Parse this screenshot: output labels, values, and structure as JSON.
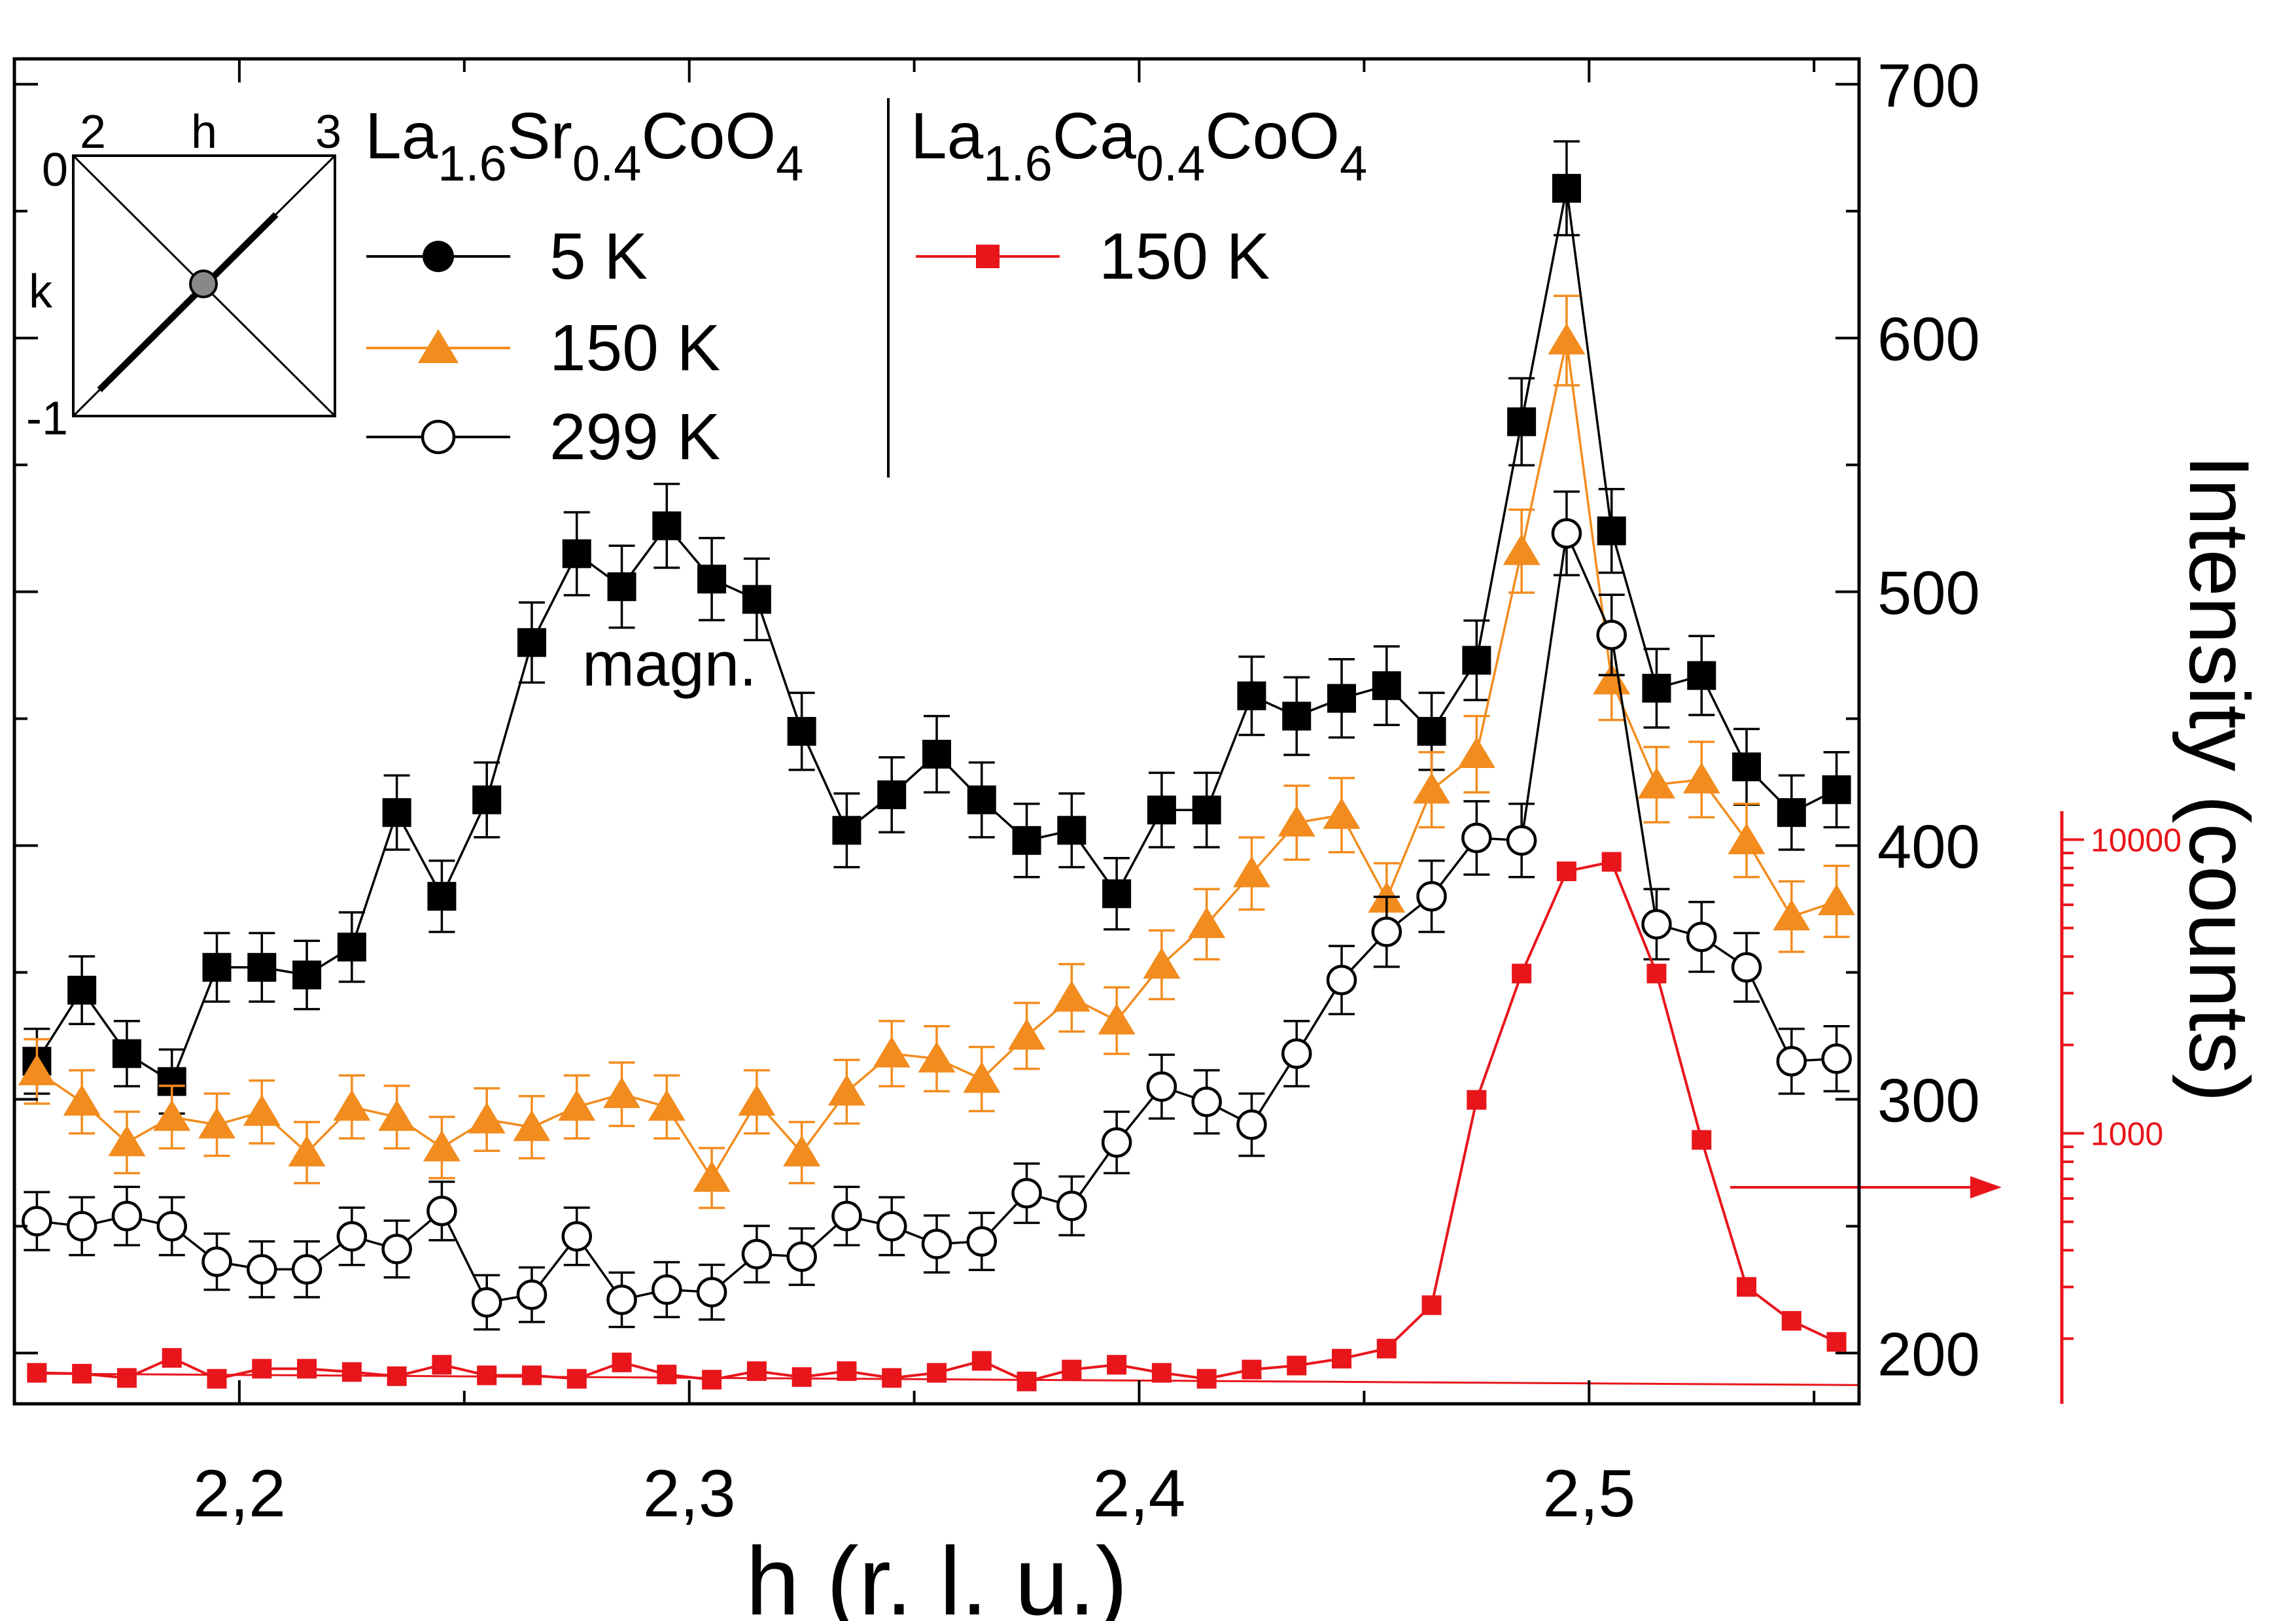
{
  "chart_data": {
    "type": "scatter",
    "xlabel": "h (r. l. u.)",
    "ylabel": "Intensity (counts)",
    "xlim": [
      2.15,
      2.56
    ],
    "ylim": [
      180,
      710
    ],
    "x_ticks": [
      "2,2",
      "2,3",
      "2,4",
      "2,5"
    ],
    "y_ticks": [
      "200",
      "300",
      "400",
      "500",
      "600",
      "700"
    ],
    "right_axis": {
      "scale": "log",
      "ticks": [
        "1000",
        "10000"
      ],
      "tick_values": [
        1000,
        10000
      ],
      "lim": [
        120,
        12500
      ],
      "color": "#e8151b"
    },
    "annotation": "magn.",
    "legend": {
      "group1_title": {
        "base1": "La",
        "sub1": "1.6",
        "base2": "Sr",
        "sub2": "0.4",
        "base3": "CoO",
        "sub3": "4"
      },
      "group2_title": {
        "base1": "La",
        "sub1": "1.6",
        "base2": "Ca",
        "sub2": "0.4",
        "base3": "CoO",
        "sub3": "4"
      },
      "entries": [
        "5 K",
        "150 K",
        "299 K",
        "150 K"
      ]
    },
    "inset": {
      "x_label": "h",
      "y_label": "k",
      "x_ticks": [
        "2",
        "3"
      ],
      "y_ticks": [
        "0",
        "-1"
      ]
    },
    "series": [
      {
        "name": "5 K",
        "group": "La1.6Sr0.4CoO4",
        "color": "#000000",
        "marker": "square-filled",
        "axis": "left",
        "x": [
          2.155,
          2.165,
          2.175,
          2.185,
          2.195,
          2.205,
          2.215,
          2.225,
          2.235,
          2.245,
          2.255,
          2.265,
          2.275,
          2.285,
          2.295,
          2.305,
          2.315,
          2.325,
          2.335,
          2.345,
          2.355,
          2.365,
          2.375,
          2.385,
          2.395,
          2.405,
          2.415,
          2.425,
          2.435,
          2.445,
          2.455,
          2.465,
          2.475,
          2.485,
          2.495,
          2.505,
          2.515,
          2.525,
          2.535,
          2.545,
          2.555
        ],
        "y": [
          315,
          343,
          318,
          307,
          352,
          352,
          349,
          360,
          413,
          380,
          418,
          480,
          515,
          502,
          526,
          505,
          497,
          445,
          406,
          420,
          436,
          418,
          402,
          406,
          381,
          414,
          414,
          459,
          451,
          458,
          463,
          445,
          473,
          567,
          659,
          524,
          462,
          467,
          431,
          413,
          422
        ]
      },
      {
        "name": "150 K",
        "group": "La1.6Sr0.4CoO4",
        "color": "#f28c1e",
        "marker": "triangle-filled",
        "axis": "left",
        "x": [
          2.155,
          2.165,
          2.175,
          2.185,
          2.195,
          2.205,
          2.215,
          2.225,
          2.235,
          2.245,
          2.255,
          2.265,
          2.275,
          2.285,
          2.295,
          2.305,
          2.315,
          2.325,
          2.335,
          2.345,
          2.355,
          2.365,
          2.375,
          2.385,
          2.395,
          2.405,
          2.415,
          2.425,
          2.435,
          2.445,
          2.455,
          2.465,
          2.475,
          2.485,
          2.495,
          2.505,
          2.515,
          2.525,
          2.535,
          2.545,
          2.555
        ],
        "y": [
          311,
          299,
          283,
          293,
          290,
          295,
          279,
          297,
          293,
          281,
          292,
          289,
          297,
          302,
          297,
          269,
          299,
          279,
          303,
          318,
          316,
          308,
          325,
          340,
          331,
          353,
          369,
          389,
          409,
          412,
          379,
          422,
          436,
          516,
          599,
          465,
          424,
          426,
          402,
          372,
          378
        ]
      },
      {
        "name": "299 K",
        "group": "La1.6Sr0.4CoO4",
        "color": "#000000",
        "marker": "circle-open",
        "axis": "left",
        "x": [
          2.155,
          2.165,
          2.175,
          2.185,
          2.195,
          2.205,
          2.215,
          2.225,
          2.235,
          2.245,
          2.255,
          2.265,
          2.275,
          2.285,
          2.295,
          2.305,
          2.315,
          2.325,
          2.335,
          2.345,
          2.355,
          2.365,
          2.375,
          2.385,
          2.395,
          2.405,
          2.415,
          2.425,
          2.435,
          2.445,
          2.455,
          2.465,
          2.475,
          2.485,
          2.495,
          2.505,
          2.515,
          2.525,
          2.535,
          2.545,
          2.555
        ],
        "y": [
          252,
          250,
          254,
          250,
          236,
          233,
          233,
          246,
          241,
          256,
          220,
          223,
          246,
          221,
          225,
          224,
          239,
          238,
          254,
          250,
          243,
          244,
          263,
          258,
          283,
          305,
          299,
          290,
          318,
          347,
          366,
          380,
          403,
          402,
          523,
          483,
          369,
          364,
          352,
          315,
          316
        ]
      },
      {
        "name": "150 K",
        "group": "La1.6Ca0.4CoO4",
        "color": "#e8151b",
        "marker": "square-filled",
        "axis": "right",
        "x": [
          2.155,
          2.165,
          2.175,
          2.185,
          2.195,
          2.205,
          2.215,
          2.225,
          2.235,
          2.245,
          2.255,
          2.265,
          2.275,
          2.285,
          2.295,
          2.305,
          2.315,
          2.325,
          2.335,
          2.345,
          2.355,
          2.365,
          2.375,
          2.385,
          2.395,
          2.405,
          2.415,
          2.425,
          2.435,
          2.445,
          2.455,
          2.465,
          2.475,
          2.485,
          2.495,
          2.505,
          2.515,
          2.525,
          2.535,
          2.545,
          2.555
        ],
        "y": [
          153,
          152,
          147,
          172,
          146,
          158,
          158,
          154,
          149,
          163,
          150,
          150,
          146,
          166,
          151,
          145,
          155,
          148,
          155,
          147,
          153,
          168,
          143,
          157,
          163,
          153,
          146,
          157,
          162,
          171,
          185,
          260,
          1300,
          3500,
          7800,
          8400,
          3500,
          950,
          300,
          230,
          195
        ]
      }
    ]
  }
}
